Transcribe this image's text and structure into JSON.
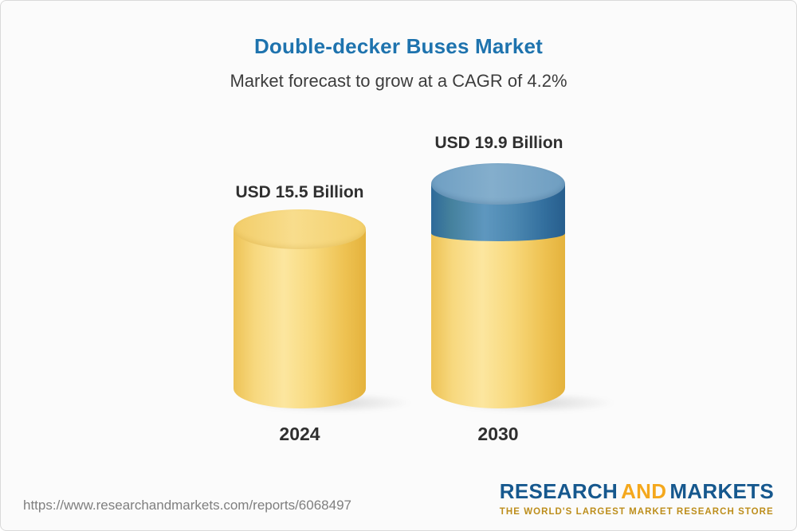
{
  "page": {
    "title": "Double-decker Buses Market",
    "subtitle": "Market forecast to grow at a CAGR of 4.2%"
  },
  "chart_data": {
    "type": "bar",
    "variant": "3d-cylinder",
    "title": "Double-decker Buses Market",
    "subtitle": "Market forecast to grow at a CAGR of 4.2%",
    "unit": "USD Billion",
    "cagr_percent": 4.2,
    "categories": [
      "2024",
      "2030"
    ],
    "values": [
      15.5,
      19.9
    ],
    "value_labels": [
      "USD 15.5 Billion",
      "USD 19.9 Billion"
    ],
    "segment_colors": {
      "base_yellow": "#f2cc62",
      "growth_blue": "#3c77a4"
    },
    "ylim": [
      0,
      20
    ],
    "grid": false,
    "legend": "none"
  },
  "footer": {
    "url": "https://www.researchandmarkets.com/reports/6068497",
    "logo": {
      "word1": "RESEARCH",
      "word2": "AND",
      "word3": "MARKETS",
      "tagline": "THE WORLD'S LARGEST MARKET RESEARCH STORE"
    },
    "colors": {
      "logo_blue": "#16588e",
      "logo_gold": "#f4a81d",
      "tagline_gold": "#bd8e1c"
    }
  }
}
